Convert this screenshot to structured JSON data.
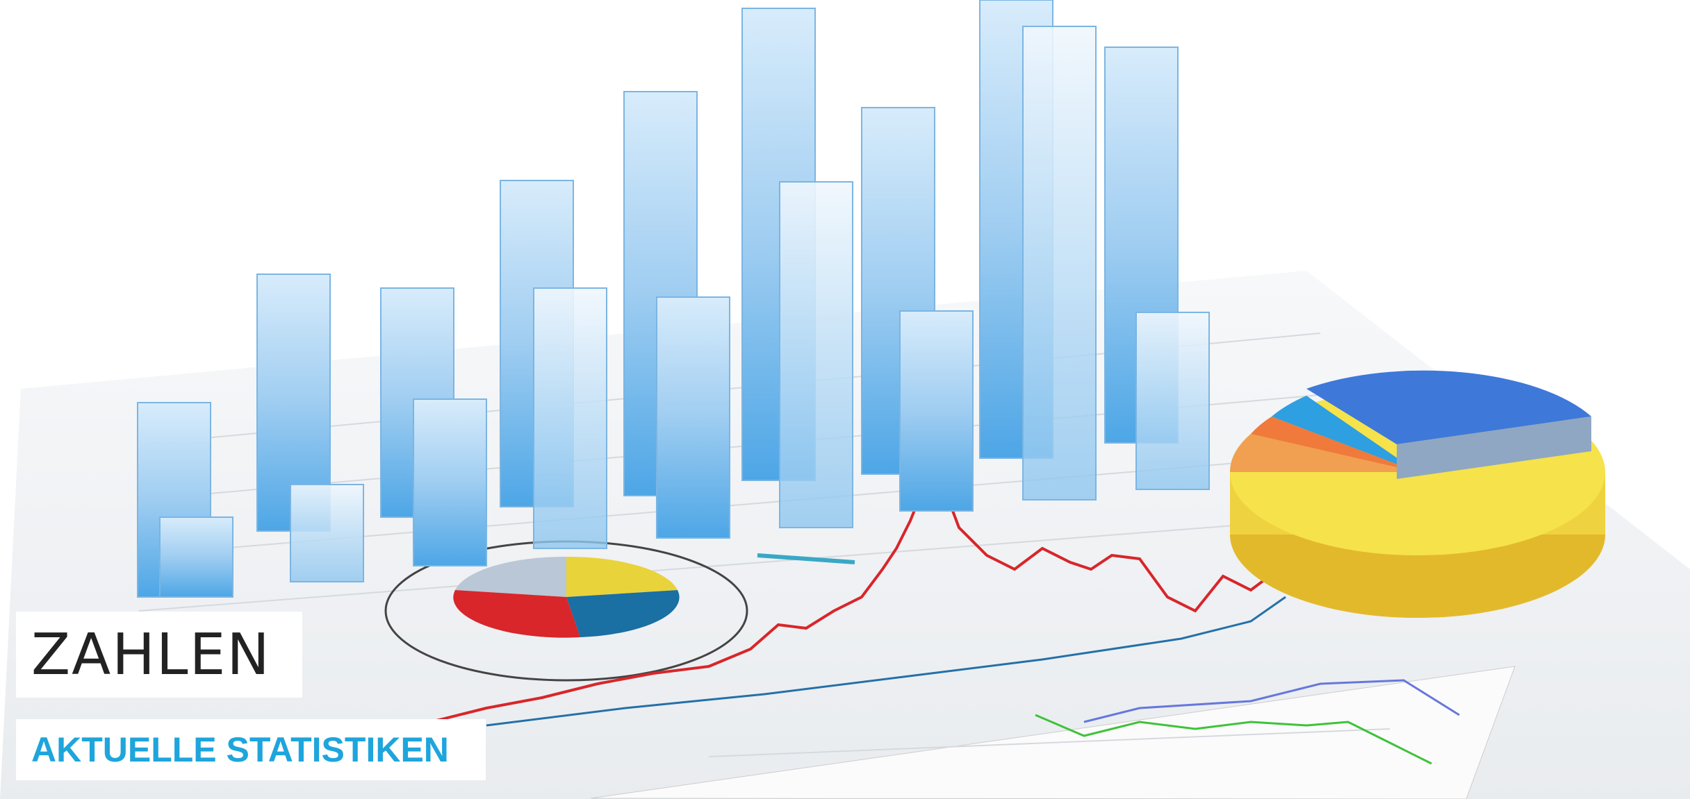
{
  "hero": {
    "title": "ZAHLEN",
    "subtitle": "AKTUELLE STATISTIKEN"
  }
}
